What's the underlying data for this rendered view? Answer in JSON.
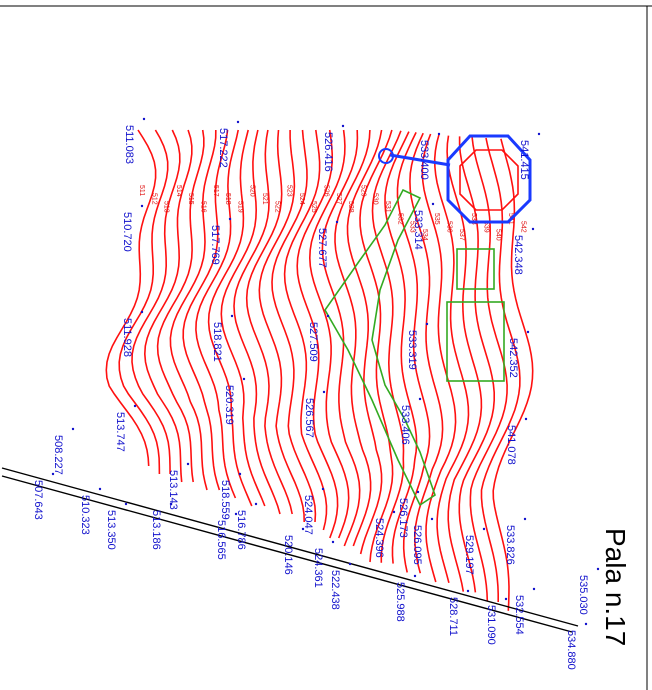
{
  "title": "Pala n.17",
  "colors": {
    "contour": "#ff1010",
    "spot_height": "#1010cc",
    "green_polygon": "#33aa22",
    "turbine": "#1a3aff",
    "road": "#000000"
  },
  "contour_labels": [
    "511",
    "512",
    "513",
    "514",
    "515",
    "516",
    "517",
    "518",
    "519",
    "520",
    "521",
    "522",
    "523",
    "524",
    "525",
    "526",
    "527",
    "528",
    "529",
    "530",
    "531",
    "532",
    "533",
    "534",
    "535",
    "536",
    "537",
    "538",
    "539",
    "540",
    "541",
    "542"
  ],
  "spot_heights": [
    {
      "text": "511.083"
    },
    {
      "text": "510.720"
    },
    {
      "text": "511.928"
    },
    {
      "text": "513.747"
    },
    {
      "text": "517.222"
    },
    {
      "text": "517.769"
    },
    {
      "text": "518.821"
    },
    {
      "text": "520.319"
    },
    {
      "text": "526.416"
    },
    {
      "text": "527.677"
    },
    {
      "text": "527.509"
    },
    {
      "text": "526.567"
    },
    {
      "text": "533.400"
    },
    {
      "text": "533.314"
    },
    {
      "text": "533.319"
    },
    {
      "text": "533.406"
    },
    {
      "text": "541.415"
    },
    {
      "text": "542.348"
    },
    {
      "text": "542.352"
    },
    {
      "text": "541.078"
    },
    {
      "text": "508.227"
    },
    {
      "text": "507.643"
    },
    {
      "text": "510.323"
    },
    {
      "text": "513.350"
    },
    {
      "text": "513.186"
    },
    {
      "text": "513.143"
    },
    {
      "text": "518.559"
    },
    {
      "text": "516.565"
    },
    {
      "text": "516.786"
    },
    {
      "text": "520.146"
    },
    {
      "text": "524.047"
    },
    {
      "text": "524.361"
    },
    {
      "text": "522.438"
    },
    {
      "text": "524.396"
    },
    {
      "text": "525.988"
    },
    {
      "text": "526.173"
    },
    {
      "text": "526.095"
    },
    {
      "text": "528.711"
    },
    {
      "text": "529.197"
    },
    {
      "text": "531.090"
    },
    {
      "text": "532.554"
    },
    {
      "text": "533.826"
    },
    {
      "text": "535.030"
    },
    {
      "text": "534.880"
    }
  ]
}
